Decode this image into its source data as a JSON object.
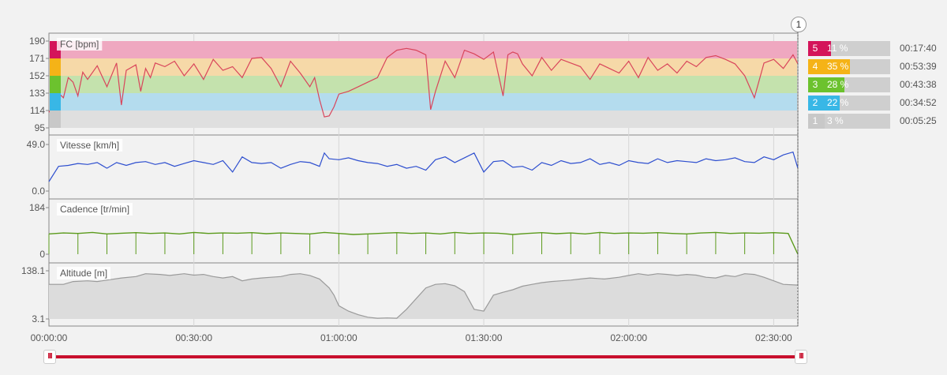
{
  "chart_data": [
    {
      "type": "area",
      "title": "FC [bpm]",
      "ylim": [
        95,
        190
      ],
      "y_ticks": [
        "190",
        "171",
        "152",
        "133",
        "114",
        "95"
      ],
      "zones": [
        {
          "zone": "5",
          "from": 171,
          "to": 190,
          "color": "#efa8c0"
        },
        {
          "zone": "4",
          "from": 152,
          "to": 171,
          "color": "#f6d9a8"
        },
        {
          "zone": "3",
          "from": 133,
          "to": 152,
          "color": "#c4e2ad"
        },
        {
          "zone": "2",
          "from": 114,
          "to": 133,
          "color": "#b4dcee"
        },
        {
          "zone": "1",
          "from": 95,
          "to": 114,
          "color": "#dfdfdf"
        }
      ],
      "line_color": "#d9455b",
      "x_minutes": [
        0,
        1,
        2,
        3,
        4,
        5,
        6,
        7,
        8,
        10,
        12,
        14,
        15,
        16,
        18,
        19,
        20,
        21,
        22,
        24,
        26,
        28,
        30,
        32,
        34,
        36,
        38,
        40,
        42,
        44,
        46,
        48,
        50,
        52,
        54,
        55,
        56,
        57,
        58,
        59,
        60,
        62,
        64,
        66,
        68,
        70,
        72,
        74,
        76,
        78,
        79,
        80,
        82,
        84,
        86,
        88,
        90,
        92,
        94,
        95,
        96,
        97,
        98,
        100,
        102,
        104,
        106,
        108,
        110,
        112,
        114,
        116,
        118,
        120,
        122,
        124,
        126,
        128,
        130,
        132,
        134,
        136,
        138,
        140,
        142,
        144,
        146,
        148,
        150,
        152,
        154,
        155
      ],
      "values": [
        112,
        120,
        133,
        128,
        150,
        145,
        130,
        156,
        148,
        163,
        140,
        166,
        120,
        158,
        164,
        135,
        160,
        150,
        166,
        162,
        168,
        152,
        165,
        148,
        170,
        158,
        162,
        150,
        171,
        172,
        160,
        140,
        168,
        155,
        140,
        150,
        126,
        107,
        108,
        118,
        132,
        135,
        140,
        145,
        150,
        172,
        180,
        182,
        180,
        175,
        115,
        135,
        168,
        150,
        180,
        176,
        170,
        178,
        130,
        175,
        178,
        176,
        165,
        152,
        172,
        158,
        170,
        166,
        162,
        148,
        165,
        160,
        155,
        168,
        150,
        172,
        158,
        165,
        155,
        168,
        162,
        172,
        174,
        170,
        165,
        152,
        128,
        166,
        170,
        160,
        175,
        165
      ]
    },
    {
      "type": "line",
      "title": "Vitesse [km/h]",
      "ylim": [
        0.0,
        49.0
      ],
      "y_ticks": [
        "49.0",
        "0.0"
      ],
      "line_color": "#2e4fcf",
      "x_minutes": [
        0,
        2,
        4,
        6,
        8,
        10,
        12,
        14,
        16,
        18,
        20,
        22,
        24,
        26,
        28,
        30,
        32,
        34,
        36,
        38,
        40,
        42,
        44,
        46,
        48,
        50,
        52,
        54,
        56,
        57,
        58,
        60,
        62,
        64,
        66,
        68,
        70,
        72,
        74,
        76,
        78,
        80,
        82,
        84,
        86,
        88,
        90,
        92,
        94,
        96,
        98,
        100,
        102,
        104,
        106,
        108,
        110,
        112,
        114,
        116,
        118,
        120,
        122,
        124,
        126,
        128,
        130,
        132,
        134,
        136,
        138,
        140,
        142,
        144,
        146,
        148,
        150,
        152,
        154,
        155
      ],
      "values": [
        10,
        26,
        27,
        29,
        28,
        30,
        24,
        30,
        27,
        30,
        31,
        28,
        30,
        26,
        29,
        32,
        30,
        28,
        32,
        20,
        36,
        30,
        29,
        30,
        24,
        28,
        31,
        30,
        26,
        40,
        34,
        33,
        35,
        32,
        30,
        29,
        26,
        28,
        24,
        26,
        22,
        33,
        36,
        30,
        35,
        40,
        20,
        31,
        32,
        25,
        26,
        22,
        30,
        27,
        32,
        29,
        30,
        34,
        28,
        30,
        27,
        32,
        30,
        29,
        34,
        30,
        32,
        31,
        30,
        34,
        32,
        33,
        35,
        31,
        30,
        36,
        33,
        38,
        41,
        24
      ]
    },
    {
      "type": "line",
      "title": "Cadence [tr/min]",
      "ylim": [
        0,
        184
      ],
      "y_ticks": [
        "184",
        "0"
      ],
      "line_color": "#5b9a1c",
      "x_minutes": [
        0,
        3,
        6,
        9,
        12,
        15,
        18,
        21,
        24,
        27,
        30,
        33,
        36,
        39,
        42,
        45,
        48,
        51,
        54,
        57,
        60,
        63,
        66,
        69,
        72,
        75,
        78,
        81,
        84,
        87,
        90,
        93,
        96,
        99,
        102,
        105,
        108,
        111,
        114,
        117,
        120,
        123,
        126,
        129,
        132,
        135,
        138,
        141,
        144,
        147,
        150,
        153,
        155
      ],
      "values": [
        80,
        84,
        82,
        86,
        80,
        83,
        85,
        82,
        84,
        80,
        86,
        82,
        84,
        83,
        85,
        81,
        84,
        82,
        80,
        86,
        82,
        78,
        80,
        83,
        85,
        82,
        84,
        80,
        86,
        82,
        84,
        83,
        78,
        82,
        85,
        81,
        84,
        80,
        86,
        82,
        84,
        83,
        85,
        82,
        80,
        84,
        86,
        82,
        84,
        83,
        85,
        82,
        0
      ]
    },
    {
      "type": "area",
      "title": "Altitude [m]",
      "ylim": [
        3.1,
        138.1
      ],
      "y_ticks": [
        "138.1",
        "3.1"
      ],
      "line_color": "#9a9a9a",
      "fill_color": "#dcdcdc",
      "x_minutes": [
        0,
        3,
        5,
        8,
        10,
        12,
        15,
        18,
        20,
        23,
        25,
        28,
        30,
        32,
        34,
        36,
        38,
        40,
        42,
        44,
        46,
        48,
        50,
        52,
        54,
        56,
        58,
        59,
        60,
        62,
        64,
        66,
        68,
        70,
        72,
        74,
        76,
        78,
        80,
        82,
        84,
        86,
        88,
        90,
        92,
        94,
        96,
        98,
        100,
        102,
        104,
        106,
        108,
        110,
        112,
        115,
        118,
        120,
        122,
        124,
        126,
        128,
        130,
        132,
        134,
        136,
        138,
        140,
        142,
        144,
        146,
        148,
        150,
        152,
        155
      ],
      "values": [
        100,
        100,
        108,
        110,
        108,
        112,
        118,
        122,
        130,
        128,
        125,
        130,
        126,
        128,
        122,
        118,
        122,
        110,
        115,
        118,
        120,
        122,
        128,
        130,
        125,
        115,
        90,
        70,
        40,
        25,
        15,
        8,
        5,
        6,
        5,
        30,
        60,
        90,
        100,
        102,
        96,
        80,
        30,
        25,
        70,
        78,
        85,
        95,
        100,
        105,
        108,
        110,
        112,
        115,
        118,
        115,
        120,
        125,
        130,
        126,
        130,
        128,
        125,
        128,
        126,
        120,
        118,
        125,
        122,
        130,
        128,
        120,
        110,
        100,
        98
      ]
    },
    {
      "type": "bar",
      "title": "",
      "categories": [
        "5",
        "4",
        "3",
        "2",
        "1"
      ],
      "values": [
        11,
        35,
        28,
        22,
        3
      ],
      "labels": [
        "11 %",
        "35 %",
        "28 %",
        "22 %",
        "3 %"
      ],
      "durations": [
        "00:17:40",
        "00:53:39",
        "00:43:38",
        "00:34:52",
        "00:05:25"
      ],
      "colors": [
        "#d4145a",
        "#f5b317",
        "#6cc22e",
        "#38b7e6",
        "#c8c8c8"
      ]
    }
  ],
  "x_axis": {
    "xlim_minutes": [
      0,
      155
    ],
    "ticks": [
      {
        "minutes": 0,
        "label": "00:00:00"
      },
      {
        "minutes": 30,
        "label": "00:30:00"
      },
      {
        "minutes": 60,
        "label": "01:00:00"
      },
      {
        "minutes": 90,
        "label": "01:30:00"
      },
      {
        "minutes": 120,
        "label": "02:00:00"
      },
      {
        "minutes": 150,
        "label": "02:30:00"
      }
    ]
  },
  "marker_label": "1",
  "slider": {
    "handle_glyph": "III"
  }
}
